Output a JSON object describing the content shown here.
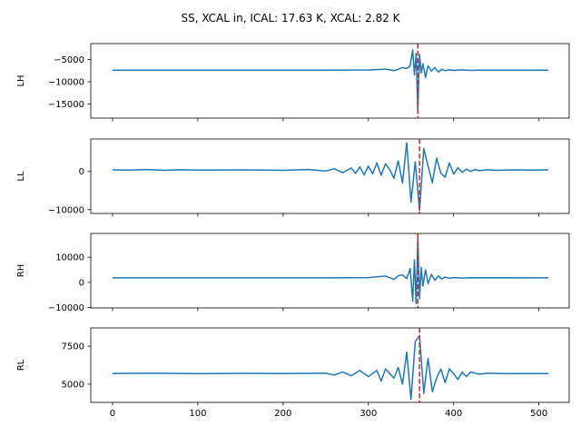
{
  "figure": {
    "title": "SS, XCAL in, ICAL: 17.63 K, XCAL: 2.82 K"
  },
  "style": {
    "line_color": "#1f77b4",
    "marker_color": "#d62728",
    "axis_color": "#000000"
  },
  "chart_data": [
    {
      "type": "line",
      "ylabel": "LH",
      "xlim": [
        -25.5,
        535.5
      ],
      "ylim": [
        -18200,
        -1400
      ],
      "yticks": [
        -15000,
        -10000,
        -5000
      ],
      "yticklabels": [
        "−15000",
        "−10000",
        "−5000"
      ],
      "xticks": [
        0,
        100,
        200,
        300,
        400,
        500
      ],
      "show_xticklabels": false,
      "baseline": -7400,
      "vertical_marker_x": 358,
      "x": [
        0,
        250,
        300,
        320,
        330,
        335,
        340,
        345,
        349,
        352,
        354,
        356,
        358,
        360,
        362,
        364,
        367,
        370,
        374,
        378,
        382,
        386,
        390,
        395,
        400,
        410,
        420,
        430,
        440,
        450,
        511
      ],
      "y": [
        -7400,
        -7400,
        -7350,
        -7150,
        -7500,
        -7200,
        -6800,
        -7000,
        -6400,
        -2800,
        -8500,
        -3600,
        -17000,
        -3800,
        -8000,
        -5900,
        -9000,
        -6400,
        -7600,
        -6800,
        -7800,
        -7200,
        -7500,
        -7300,
        -7450,
        -7350,
        -7450,
        -7400,
        -7400,
        -7400,
        -7400
      ]
    },
    {
      "type": "line",
      "ylabel": "LL",
      "xlim": [
        -25.5,
        535.5
      ],
      "ylim": [
        -11000,
        8500
      ],
      "yticks": [
        -10000,
        0
      ],
      "yticklabels": [
        "−10000",
        "0"
      ],
      "xticks": [
        0,
        100,
        200,
        300,
        400,
        500
      ],
      "show_xticklabels": false,
      "baseline": 400,
      "vertical_marker_x": 360,
      "x": [
        0,
        20,
        40,
        60,
        80,
        100,
        150,
        200,
        230,
        250,
        260,
        270,
        280,
        285,
        290,
        295,
        300,
        305,
        310,
        315,
        320,
        325,
        330,
        335,
        340,
        345,
        350,
        355,
        360,
        365,
        370,
        375,
        380,
        385,
        390,
        395,
        400,
        405,
        410,
        415,
        420,
        425,
        430,
        440,
        450,
        470,
        490,
        511
      ],
      "y": [
        400,
        350,
        500,
        300,
        450,
        350,
        400,
        300,
        500,
        100,
        700,
        -300,
        900,
        -500,
        1200,
        -900,
        1400,
        -600,
        2200,
        -1000,
        2000,
        500,
        -1800,
        2800,
        -3000,
        7500,
        -8000,
        2500,
        -10200,
        6000,
        1500,
        -3000,
        3500,
        -500,
        -1500,
        2200,
        -700,
        1000,
        -200,
        600,
        0,
        500,
        200,
        450,
        300,
        400,
        350,
        400
      ]
    },
    {
      "type": "line",
      "ylabel": "RH",
      "xlim": [
        -25.5,
        535.5
      ],
      "ylim": [
        -10200,
        19500
      ],
      "yticks": [
        -10000,
        0,
        10000
      ],
      "yticklabels": [
        "−10000",
        "0",
        "10000"
      ],
      "xticks": [
        0,
        100,
        200,
        300,
        400,
        500
      ],
      "show_xticklabels": false,
      "baseline": 1800,
      "vertical_marker_x": 358,
      "x": [
        0,
        250,
        300,
        320,
        330,
        335,
        340,
        345,
        349,
        352,
        354,
        356,
        358,
        360,
        362,
        364,
        367,
        370,
        374,
        378,
        382,
        386,
        390,
        395,
        400,
        410,
        420,
        511
      ],
      "y": [
        1800,
        1800,
        1900,
        2500,
        1200,
        2600,
        3000,
        1500,
        5500,
        -7500,
        9000,
        -8500,
        18000,
        -6500,
        6000,
        -1500,
        5000,
        -500,
        3200,
        800,
        2600,
        1400,
        2100,
        1600,
        1900,
        1700,
        1850,
        1800
      ]
    },
    {
      "type": "line",
      "ylabel": "RL",
      "xlim": [
        -25.5,
        535.5
      ],
      "ylim": [
        3800,
        8700
      ],
      "yticks": [
        5000,
        7500
      ],
      "yticklabels": [
        "5000",
        "7500"
      ],
      "xticks": [
        0,
        100,
        200,
        300,
        400,
        500
      ],
      "xticklabels": [
        "0",
        "100",
        "200",
        "300",
        "400",
        "500"
      ],
      "show_xticklabels": true,
      "baseline": 5700,
      "vertical_marker_x": 360,
      "x": [
        0,
        50,
        100,
        150,
        200,
        250,
        260,
        270,
        280,
        290,
        300,
        310,
        315,
        320,
        325,
        330,
        335,
        340,
        345,
        350,
        355,
        360,
        365,
        370,
        375,
        380,
        385,
        390,
        395,
        400,
        405,
        410,
        415,
        420,
        430,
        440,
        460,
        480,
        511
      ],
      "y": [
        5700,
        5720,
        5690,
        5710,
        5700,
        5720,
        5600,
        5800,
        5550,
        5900,
        5500,
        5900,
        5200,
        6000,
        5700,
        5400,
        6100,
        5000,
        7100,
        4000,
        7800,
        8200,
        4400,
        6700,
        4500,
        5400,
        6000,
        5100,
        6000,
        5700,
        5300,
        5800,
        5500,
        5800,
        5650,
        5720,
        5690,
        5700,
        5700
      ]
    }
  ]
}
